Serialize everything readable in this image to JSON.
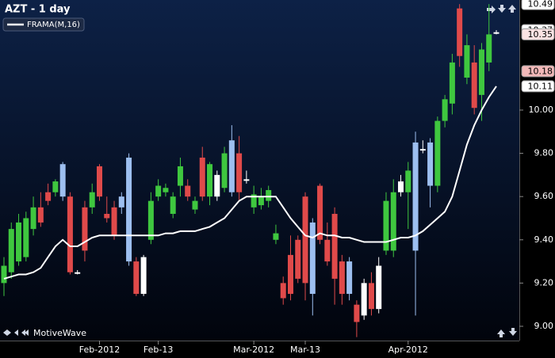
{
  "chart_data": {
    "type": "candlestick",
    "title": "AZT - 1 day",
    "watermark": "MotiveWave",
    "categories": [
      null,
      null,
      null,
      null,
      null,
      null,
      null,
      null,
      null,
      null,
      null,
      null,
      null,
      "Feb-2012",
      null,
      null,
      null,
      null,
      null,
      null,
      null,
      "Feb-13",
      null,
      null,
      null,
      null,
      null,
      null,
      null,
      null,
      null,
      null,
      null,
      null,
      "Mar-2012",
      null,
      null,
      null,
      null,
      null,
      null,
      "Mar-13",
      null,
      null,
      null,
      null,
      null,
      null,
      null,
      null,
      null,
      null,
      null,
      null,
      null,
      "Apr-2012",
      null,
      null,
      null,
      null,
      null,
      null,
      null,
      null,
      null,
      null,
      null,
      null
    ],
    "open": [
      9.2,
      9.25,
      9.3,
      9.32,
      9.45,
      9.55,
      9.62,
      9.62,
      9.6,
      9.6,
      9.25,
      9.55,
      9.55,
      9.74,
      9.52,
      9.55,
      9.55,
      9.3,
      9.3,
      9.15,
      9.4,
      9.6,
      9.62,
      9.52,
      9.65,
      9.65,
      9.54,
      9.78,
      9.6,
      9.6,
      9.64,
      9.62,
      9.8,
      9.68,
      9.55,
      9.56,
      9.58,
      9.4,
      9.2,
      9.33,
      9.4,
      9.6,
      9.15,
      9.65,
      9.4,
      9.52,
      9.3,
      9.15,
      9.1,
      9.05,
      9.2,
      9.08,
      9.35,
      9.35,
      9.62,
      9.62,
      9.35,
      9.82,
      9.65,
      9.65,
      9.95,
      10.03,
      10.47,
      10.15,
      10.22,
      10.07,
      10.22,
      10.36
    ],
    "high": [
      9.32,
      9.48,
      9.52,
      9.53,
      9.6,
      9.62,
      9.66,
      9.68,
      9.76,
      9.62,
      9.26,
      9.58,
      9.66,
      9.75,
      9.6,
      9.58,
      9.62,
      9.8,
      9.32,
      9.33,
      9.62,
      9.68,
      9.66,
      9.62,
      9.78,
      9.68,
      9.6,
      9.83,
      9.76,
      9.72,
      9.83,
      9.93,
      9.88,
      9.72,
      9.65,
      9.64,
      9.65,
      9.47,
      9.23,
      9.42,
      9.42,
      9.62,
      9.5,
      9.66,
      9.48,
      9.55,
      9.33,
      9.32,
      9.12,
      9.22,
      9.25,
      9.32,
      9.62,
      9.68,
      9.7,
      9.76,
      9.9,
      9.86,
      9.87,
      9.97,
      10.07,
      10.26,
      10.49,
      10.35,
      10.3,
      10.31,
      10.49,
      10.37
    ],
    "low": [
      9.14,
      9.22,
      9.28,
      9.3,
      9.42,
      9.46,
      9.56,
      9.6,
      9.58,
      9.24,
      9.24,
      9.3,
      9.52,
      9.58,
      9.48,
      9.4,
      9.52,
      9.28,
      9.14,
      9.14,
      9.38,
      9.58,
      9.6,
      9.5,
      9.6,
      9.58,
      9.52,
      9.58,
      9.56,
      9.58,
      9.62,
      9.6,
      9.58,
      9.66,
      9.52,
      9.54,
      9.55,
      9.38,
      9.1,
      9.12,
      9.2,
      9.12,
      9.05,
      9.38,
      9.28,
      9.1,
      9.1,
      9.12,
      8.95,
      9.03,
      9.05,
      9.06,
      9.33,
      9.32,
      9.6,
      9.45,
      9.05,
      9.8,
      9.55,
      9.62,
      9.92,
      9.98,
      10.2,
      10.12,
      9.98,
      9.95,
      10.18,
      10.35
    ],
    "close": [
      9.28,
      9.45,
      9.48,
      9.5,
      9.55,
      9.48,
      9.58,
      9.67,
      9.75,
      9.25,
      9.25,
      9.35,
      9.62,
      9.6,
      9.5,
      9.42,
      9.6,
      9.78,
      9.15,
      9.32,
      9.58,
      9.65,
      9.64,
      9.6,
      9.74,
      9.6,
      9.58,
      9.6,
      9.75,
      9.7,
      9.8,
      9.86,
      9.62,
      9.68,
      9.61,
      9.6,
      9.63,
      9.43,
      9.13,
      9.15,
      9.22,
      9.2,
      9.48,
      9.4,
      9.3,
      9.22,
      9.15,
      9.3,
      9.02,
      9.2,
      9.08,
      9.28,
      9.58,
      9.62,
      9.67,
      9.72,
      9.85,
      9.82,
      9.85,
      9.95,
      10.05,
      10.22,
      10.25,
      10.3,
      10.01,
      10.28,
      10.35,
      10.36
    ],
    "colors": [
      "#3fc73f",
      "#3fc73f",
      "#3fc73f",
      "#3fc73f",
      "#3fc73f",
      "#e04a4a",
      "#e04a4a",
      "#3fc73f",
      "#9dbff0",
      "#e04a4a",
      "#ffffff",
      "#e04a4a",
      "#3fc73f",
      "#e04a4a",
      "#e04a4a",
      "#e04a4a",
      "#9dbff0",
      "#9dbff0",
      "#e04a4a",
      "#ffffff",
      "#3fc73f",
      "#3fc73f",
      "#3fc73f",
      "#3fc73f",
      "#3fc73f",
      "#e04a4a",
      "#3fc73f",
      "#e04a4a",
      "#3fc73f",
      "#ffffff",
      "#3fc73f",
      "#9dbff0",
      "#e04a4a",
      "#ffffff",
      "#3fc73f",
      "#3fc73f",
      "#3fc73f",
      "#3fc73f",
      "#e04a4a",
      "#e04a4a",
      "#e04a4a",
      "#e04a4a",
      "#9dbff0",
      "#e04a4a",
      "#e04a4a",
      "#e04a4a",
      "#e04a4a",
      "#9dbff0",
      "#e04a4a",
      "#ffffff",
      "#e04a4a",
      "#ffffff",
      "#3fc73f",
      "#3fc73f",
      "#ffffff",
      "#3fc73f",
      "#9dbff0",
      "#ffffff",
      "#9dbff0",
      "#3fc73f",
      "#3fc73f",
      "#3fc73f",
      "#e04a4a",
      "#3fc73f",
      "#e04a4a",
      "#3fc73f",
      "#3fc73f",
      "#ffffff"
    ],
    "series": [
      {
        "name": "FRAMA(M,16)",
        "color": "#ffffff",
        "values": [
          9.22,
          9.23,
          9.24,
          9.24,
          9.25,
          9.27,
          9.32,
          9.37,
          9.4,
          9.37,
          9.37,
          9.39,
          9.41,
          9.42,
          9.42,
          9.42,
          9.42,
          9.42,
          9.42,
          9.42,
          9.42,
          9.42,
          9.43,
          9.43,
          9.44,
          9.44,
          9.44,
          9.45,
          9.46,
          9.48,
          9.5,
          9.54,
          9.58,
          9.6,
          9.6,
          9.6,
          9.6,
          9.6,
          9.55,
          9.5,
          9.46,
          9.42,
          9.41,
          9.43,
          9.42,
          9.42,
          9.41,
          9.41,
          9.4,
          9.39,
          9.39,
          9.39,
          9.39,
          9.4,
          9.41,
          9.41,
          9.42,
          9.44,
          9.47,
          9.5,
          9.53,
          9.6,
          9.72,
          9.84,
          9.93,
          10.0,
          10.06,
          10.11
        ]
      }
    ],
    "price_markers": [
      {
        "value": 10.49,
        "color": "#ffffff"
      },
      {
        "value": 10.37,
        "color": "#ffffff"
      },
      {
        "value": 10.35,
        "color": "#fbe3e3"
      },
      {
        "value": 10.18,
        "color": "#f2b8b8"
      },
      {
        "value": 10.11,
        "color": "#ffffff"
      }
    ],
    "ylim": [
      8.934,
      10.509
    ],
    "yticks": [
      {
        "value": 9,
        "label": "9.00"
      },
      {
        "value": 9.2,
        "label": "9.20"
      },
      {
        "value": 9.4,
        "label": "9.40"
      },
      {
        "value": 9.6,
        "label": "9.60"
      },
      {
        "value": 9.8,
        "label": "9.80"
      },
      {
        "value": 10,
        "label": "10.00"
      }
    ],
    "grid": false
  }
}
